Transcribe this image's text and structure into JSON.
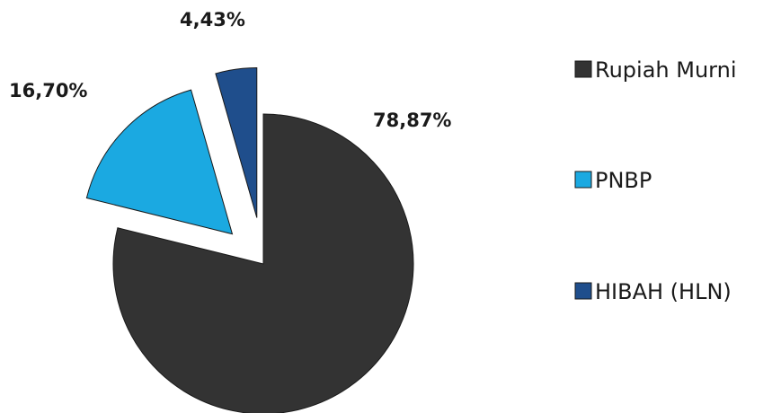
{
  "chart_data": {
    "type": "pie",
    "exploded": true,
    "categories": [
      "Rupiah Murni",
      "PNBP",
      "HIBAH (HLN)"
    ],
    "values": [
      78.87,
      16.7,
      4.43
    ],
    "data_labels": [
      "78,87%",
      "16,70%",
      "4,43%"
    ],
    "colors": [
      "#333333",
      "#1ba9e1",
      "#1f4e8c"
    ],
    "legend": {
      "placement": "right",
      "entries": [
        {
          "label": "Rupiah Murni",
          "color": "#333333"
        },
        {
          "label": "PNBP",
          "color": "#1ba9e1"
        },
        {
          "label": "HIBAH (HLN)",
          "color": "#1f4e8c"
        }
      ]
    },
    "title": ""
  }
}
